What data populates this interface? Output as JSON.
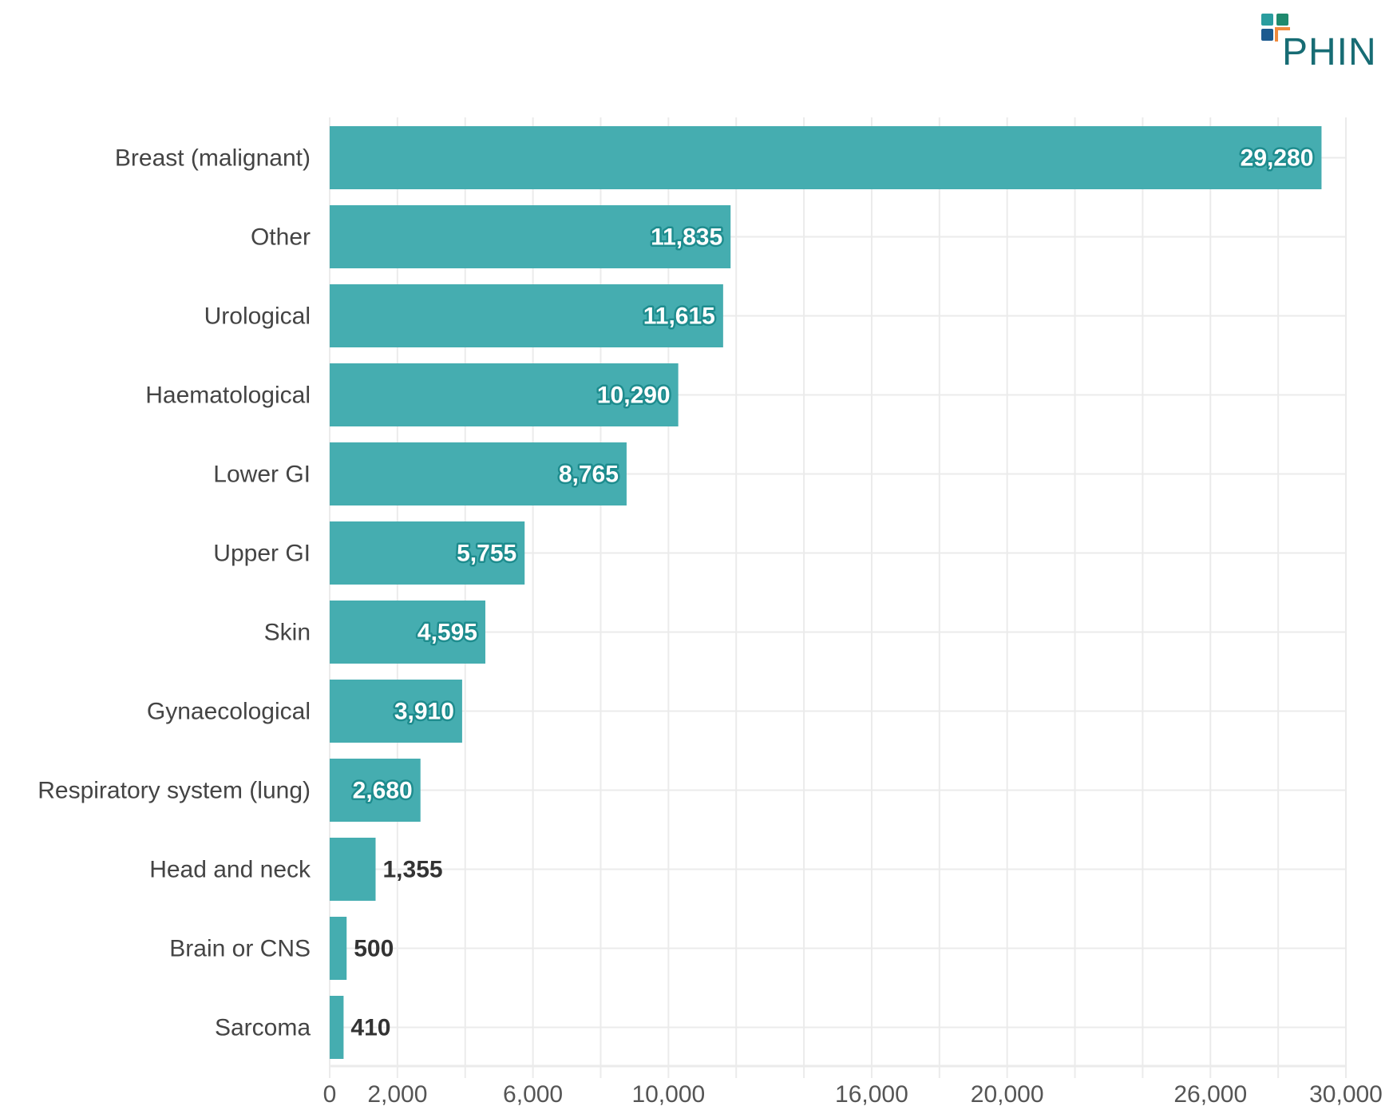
{
  "chart_data": {
    "type": "bar",
    "orientation": "horizontal",
    "categories": [
      "Breast (malignant)",
      "Other",
      "Urological",
      "Haematological",
      "Lower GI",
      "Upper GI",
      "Skin",
      "Gynaecological",
      "Respiratory system (lung)",
      "Head and neck",
      "Brain or CNS",
      "Sarcoma"
    ],
    "values": [
      29280,
      11835,
      11615,
      10290,
      8765,
      5755,
      4595,
      3910,
      2680,
      1355,
      500,
      410
    ],
    "value_labels": [
      "29,280",
      "11,835",
      "11,615",
      "10,290",
      "8,765",
      "5,755",
      "4,595",
      "3,910",
      "2,680",
      "1,355",
      "500",
      "410"
    ],
    "xlim": [
      0,
      30000
    ],
    "x_ticks": [
      0,
      2000,
      6000,
      10000,
      16000,
      20000,
      26000,
      30000
    ],
    "x_tick_labels": [
      "0",
      "2,000",
      "6,000",
      "10,000",
      "16,000",
      "20,000",
      "26,000",
      "30,000"
    ],
    "grid": true,
    "grid_step": 2000,
    "title": "",
    "xlabel": "",
    "ylabel": "",
    "bar_color": "#45adb0"
  },
  "logo": {
    "text": "PHIN",
    "colors": [
      "#2a9d9f",
      "#1f8a6e",
      "#1c5a8f",
      "#f08a3c",
      "#176c74"
    ]
  }
}
